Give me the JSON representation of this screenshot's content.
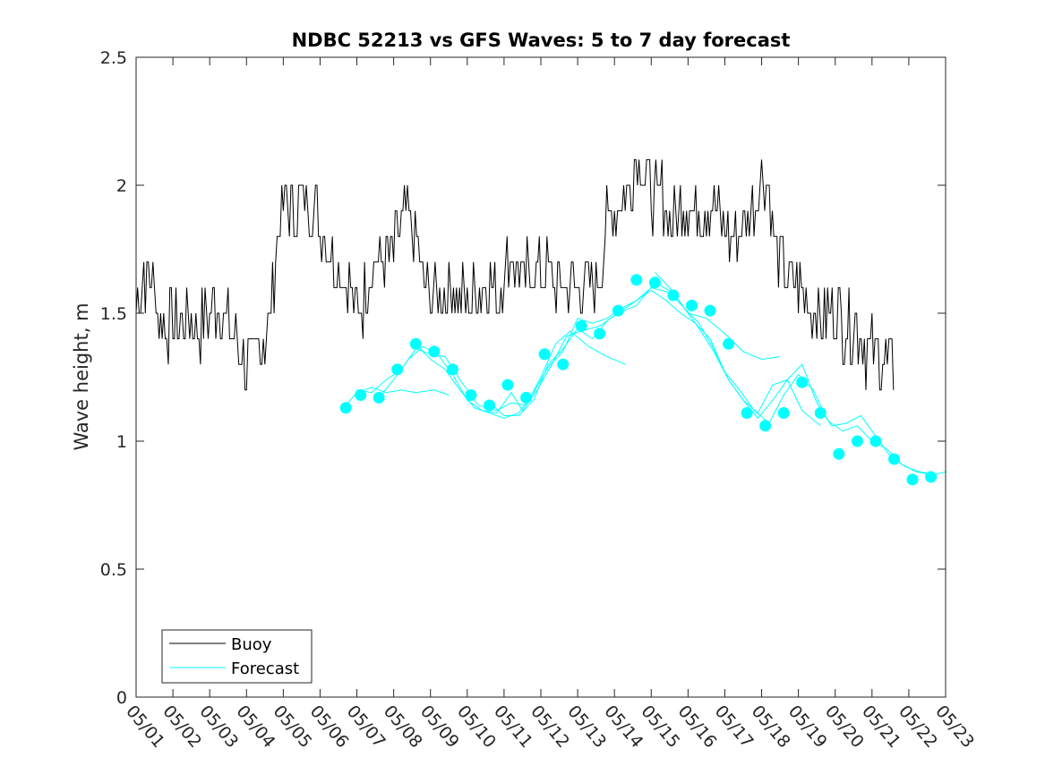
{
  "chart_data": {
    "type": "line",
    "title": "NDBC 52213 vs GFS Waves: 5 to 7 day forecast",
    "ylabel": "Wave height, m",
    "xlabel": "",
    "ylim": [
      0,
      2.5
    ],
    "yticks": [
      0,
      0.5,
      1,
      1.5,
      2,
      2.5
    ],
    "ytick_labels": [
      "0",
      "0.5",
      "1",
      "1.5",
      "2",
      "2.5"
    ],
    "xlim": [
      1,
      23
    ],
    "xticks": [
      1,
      2,
      3,
      4,
      5,
      6,
      7,
      8,
      9,
      10,
      11,
      12,
      13,
      14,
      15,
      16,
      17,
      18,
      19,
      20,
      21,
      22,
      23
    ],
    "xtick_labels": [
      "05/01",
      "05/02",
      "05/03",
      "05/04",
      "05/05",
      "05/06",
      "05/07",
      "05/08",
      "05/09",
      "05/10",
      "05/11",
      "05/12",
      "05/13",
      "05/14",
      "05/15",
      "05/16",
      "05/17",
      "05/18",
      "05/19",
      "05/20",
      "05/21",
      "05/22",
      "05/23"
    ],
    "legend": {
      "location": "bottom-left",
      "entries": [
        "Buoy",
        "Forecast"
      ]
    },
    "colors": {
      "buoy": "#000000",
      "forecast": "#00ffff",
      "axis": "#262626"
    },
    "buoy_anchors": [
      [
        1.0,
        1.55
      ],
      [
        1.2,
        1.65
      ],
      [
        1.5,
        1.6
      ],
      [
        1.7,
        1.45
      ],
      [
        2.0,
        1.45
      ],
      [
        2.4,
        1.5
      ],
      [
        2.8,
        1.45
      ],
      [
        3.0,
        1.5
      ],
      [
        3.3,
        1.55
      ],
      [
        3.5,
        1.45
      ],
      [
        3.8,
        1.35
      ],
      [
        4.0,
        1.3
      ],
      [
        4.3,
        1.35
      ],
      [
        4.6,
        1.45
      ],
      [
        4.8,
        1.75
      ],
      [
        5.0,
        1.95
      ],
      [
        5.3,
        1.9
      ],
      [
        5.6,
        1.95
      ],
      [
        5.9,
        1.9
      ],
      [
        6.2,
        1.75
      ],
      [
        6.5,
        1.7
      ],
      [
        6.8,
        1.6
      ],
      [
        7.0,
        1.5
      ],
      [
        7.2,
        1.55
      ],
      [
        7.5,
        1.75
      ],
      [
        7.8,
        1.7
      ],
      [
        8.0,
        1.75
      ],
      [
        8.3,
        1.9
      ],
      [
        8.6,
        1.75
      ],
      [
        8.9,
        1.6
      ],
      [
        9.2,
        1.55
      ],
      [
        9.5,
        1.6
      ],
      [
        9.8,
        1.55
      ],
      [
        10.2,
        1.55
      ],
      [
        10.5,
        1.65
      ],
      [
        10.8,
        1.55
      ],
      [
        11.2,
        1.75
      ],
      [
        11.5,
        1.6
      ],
      [
        11.8,
        1.7
      ],
      [
        12.2,
        1.65
      ],
      [
        12.5,
        1.6
      ],
      [
        12.8,
        1.6
      ],
      [
        13.0,
        1.6
      ],
      [
        13.3,
        1.6
      ],
      [
        13.6,
        1.65
      ],
      [
        13.8,
        1.85
      ],
      [
        14.0,
        1.9
      ],
      [
        14.3,
        1.95
      ],
      [
        14.6,
        2.1
      ],
      [
        14.8,
        2.05
      ],
      [
        15.0,
        1.95
      ],
      [
        15.3,
        1.95
      ],
      [
        15.5,
        1.85
      ],
      [
        15.8,
        1.9
      ],
      [
        16.0,
        1.95
      ],
      [
        16.3,
        1.9
      ],
      [
        16.6,
        1.95
      ],
      [
        16.9,
        1.85
      ],
      [
        17.2,
        1.8
      ],
      [
        17.5,
        1.85
      ],
      [
        17.8,
        1.9
      ],
      [
        18.0,
        2.05
      ],
      [
        18.2,
        1.95
      ],
      [
        18.4,
        1.75
      ],
      [
        18.7,
        1.65
      ],
      [
        19.0,
        1.6
      ],
      [
        19.3,
        1.55
      ],
      [
        19.6,
        1.5
      ],
      [
        20.0,
        1.5
      ],
      [
        20.3,
        1.45
      ],
      [
        20.6,
        1.45
      ],
      [
        20.9,
        1.35
      ],
      [
        21.2,
        1.3
      ],
      [
        21.6,
        1.3
      ]
    ],
    "forecast_markers": [
      [
        6.7,
        1.13
      ],
      [
        7.1,
        1.18
      ],
      [
        7.6,
        1.17
      ],
      [
        8.1,
        1.28
      ],
      [
        8.6,
        1.38
      ],
      [
        9.1,
        1.35
      ],
      [
        9.6,
        1.28
      ],
      [
        10.1,
        1.18
      ],
      [
        10.6,
        1.14
      ],
      [
        11.1,
        1.22
      ],
      [
        11.6,
        1.17
      ],
      [
        12.1,
        1.34
      ],
      [
        12.6,
        1.3
      ],
      [
        13.1,
        1.45
      ],
      [
        13.6,
        1.42
      ],
      [
        14.1,
        1.51
      ],
      [
        14.6,
        1.63
      ],
      [
        15.1,
        1.62
      ],
      [
        15.6,
        1.57
      ],
      [
        16.1,
        1.53
      ],
      [
        16.6,
        1.51
      ],
      [
        17.1,
        1.38
      ],
      [
        17.6,
        1.11
      ],
      [
        18.1,
        1.06
      ],
      [
        18.6,
        1.11
      ],
      [
        19.1,
        1.23
      ],
      [
        19.6,
        1.11
      ],
      [
        20.1,
        0.95
      ],
      [
        20.6,
        1.0
      ],
      [
        21.1,
        1.0
      ],
      [
        21.6,
        0.93
      ],
      [
        22.1,
        0.85
      ],
      [
        22.6,
        0.86
      ]
    ],
    "forecast_traces": [
      [
        [
          6.7,
          1.14
        ],
        [
          7.0,
          1.19
        ],
        [
          7.4,
          1.21
        ],
        [
          7.8,
          1.19
        ],
        [
          8.2,
          1.2
        ],
        [
          8.6,
          1.19
        ],
        [
          9.1,
          1.2
        ],
        [
          9.5,
          1.18
        ]
      ],
      [
        [
          7.0,
          1.2
        ],
        [
          7.4,
          1.19
        ],
        [
          7.8,
          1.24
        ],
        [
          8.2,
          1.28
        ],
        [
          8.6,
          1.36
        ],
        [
          9.0,
          1.34
        ],
        [
          9.4,
          1.33
        ],
        [
          9.8,
          1.24
        ],
        [
          10.3,
          1.14
        ],
        [
          10.8,
          1.12
        ],
        [
          11.2,
          1.15
        ],
        [
          11.6,
          1.14
        ],
        [
          12.0,
          1.25
        ],
        [
          12.4,
          1.38
        ],
        [
          12.8,
          1.43
        ],
        [
          13.3,
          1.37
        ],
        [
          13.8,
          1.33
        ],
        [
          14.3,
          1.3
        ]
      ],
      [
        [
          7.6,
          1.17
        ],
        [
          8.0,
          1.24
        ],
        [
          8.4,
          1.32
        ],
        [
          8.8,
          1.37
        ],
        [
          9.2,
          1.34
        ],
        [
          9.6,
          1.26
        ],
        [
          10.0,
          1.16
        ],
        [
          10.4,
          1.12
        ],
        [
          10.8,
          1.11
        ],
        [
          11.2,
          1.19
        ],
        [
          11.5,
          1.12
        ],
        [
          11.9,
          1.2
        ],
        [
          12.3,
          1.3
        ],
        [
          12.7,
          1.41
        ],
        [
          13.1,
          1.43
        ],
        [
          13.6,
          1.45
        ],
        [
          14.1,
          1.5
        ],
        [
          14.6,
          1.53
        ],
        [
          15.1,
          1.62
        ],
        [
          15.6,
          1.58
        ],
        [
          16.0,
          1.5
        ],
        [
          16.5,
          1.48
        ],
        [
          17.0,
          1.42
        ],
        [
          17.5,
          1.35
        ],
        [
          18.0,
          1.32
        ],
        [
          18.5,
          1.33
        ]
      ],
      [
        [
          8.6,
          1.38
        ],
        [
          9.0,
          1.32
        ],
        [
          9.4,
          1.28
        ],
        [
          9.8,
          1.2
        ],
        [
          10.2,
          1.13
        ],
        [
          10.6,
          1.11
        ],
        [
          11.0,
          1.09
        ],
        [
          11.4,
          1.11
        ],
        [
          11.8,
          1.19
        ],
        [
          12.2,
          1.29
        ],
        [
          12.6,
          1.35
        ],
        [
          13.0,
          1.48
        ],
        [
          13.4,
          1.46
        ],
        [
          13.8,
          1.48
        ],
        [
          14.2,
          1.52
        ],
        [
          14.6,
          1.55
        ],
        [
          15.0,
          1.6
        ],
        [
          15.5,
          1.58
        ],
        [
          15.9,
          1.52
        ],
        [
          16.3,
          1.46
        ],
        [
          16.7,
          1.36
        ],
        [
          17.1,
          1.24
        ],
        [
          17.5,
          1.16
        ],
        [
          17.9,
          1.09
        ],
        [
          18.3,
          1.16
        ],
        [
          18.7,
          1.24
        ],
        [
          19.1,
          1.12
        ],
        [
          19.6,
          1.06
        ]
      ],
      [
        [
          10.6,
          1.15
        ],
        [
          11.0,
          1.1
        ],
        [
          11.4,
          1.1
        ],
        [
          11.8,
          1.16
        ],
        [
          12.2,
          1.3
        ],
        [
          12.6,
          1.36
        ],
        [
          13.0,
          1.44
        ],
        [
          13.4,
          1.4
        ],
        [
          13.8,
          1.47
        ],
        [
          14.2,
          1.51
        ],
        [
          14.6,
          1.55
        ],
        [
          15.0,
          1.59
        ],
        [
          15.4,
          1.55
        ],
        [
          15.8,
          1.5
        ],
        [
          16.2,
          1.46
        ],
        [
          16.6,
          1.4
        ],
        [
          17.0,
          1.27
        ],
        [
          17.4,
          1.2
        ],
        [
          17.8,
          1.12
        ],
        [
          18.2,
          1.07
        ],
        [
          18.6,
          1.18
        ],
        [
          19.0,
          1.26
        ],
        [
          19.4,
          1.2
        ],
        [
          19.8,
          1.08
        ],
        [
          20.2,
          1.04
        ],
        [
          20.6,
          1.06
        ],
        [
          21.0,
          1.0
        ],
        [
          21.4,
          0.97
        ],
        [
          21.8,
          0.91
        ],
        [
          22.2,
          0.88
        ],
        [
          22.6,
          0.87
        ]
      ],
      [
        [
          15.1,
          1.66
        ],
        [
          15.5,
          1.6
        ],
        [
          15.9,
          1.52
        ],
        [
          16.3,
          1.44
        ],
        [
          16.7,
          1.35
        ],
        [
          17.1,
          1.24
        ],
        [
          17.5,
          1.16
        ],
        [
          17.9,
          1.11
        ],
        [
          18.3,
          1.22
        ],
        [
          18.7,
          1.24
        ],
        [
          19.1,
          1.3
        ],
        [
          19.5,
          1.15
        ],
        [
          19.9,
          1.06
        ],
        [
          20.3,
          1.07
        ],
        [
          20.7,
          1.1
        ],
        [
          21.1,
          1.02
        ],
        [
          21.5,
          0.94
        ],
        [
          21.9,
          0.9
        ],
        [
          22.3,
          0.88
        ],
        [
          22.7,
          0.87
        ],
        [
          23.0,
          0.88
        ]
      ]
    ]
  }
}
